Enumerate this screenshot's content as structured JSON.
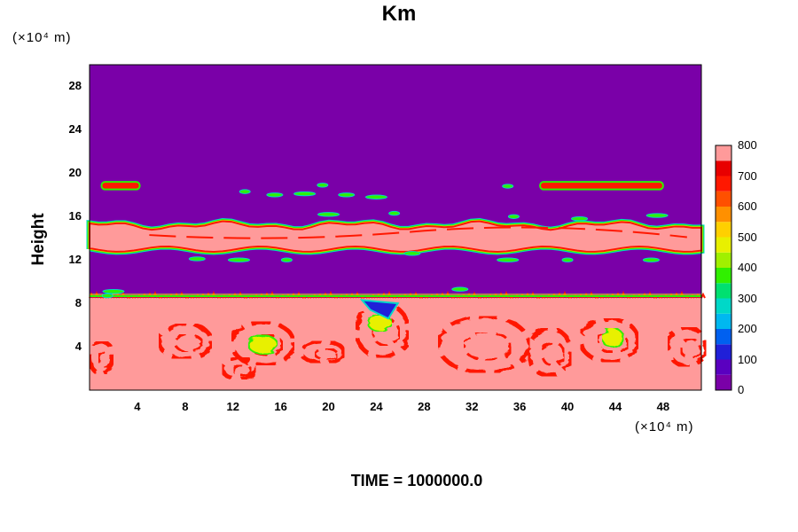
{
  "chart_data": {
    "type": "heatmap",
    "title": "Km",
    "ylabel": "Height",
    "y_unit": "(×10⁴ m)",
    "x_unit": "(×10⁴ m)",
    "x_ticks": [
      "4",
      "8",
      "12",
      "16",
      "20",
      "24",
      "28",
      "32",
      "36",
      "40",
      "44",
      "48"
    ],
    "y_ticks": [
      "4",
      "8",
      "12",
      "16",
      "20",
      "24",
      "28"
    ],
    "xlim": [
      0,
      51.2
    ],
    "ylim": [
      0,
      30
    ],
    "colorbar": {
      "ticks": [
        "0",
        "100",
        "200",
        "300",
        "400",
        "500",
        "600",
        "700",
        "800"
      ],
      "range": [
        0,
        800
      ],
      "colors": [
        "#7a00a8",
        "#5a00c0",
        "#2020d8",
        "#0060f0",
        "#00b8f0",
        "#00d8c8",
        "#00e070",
        "#30f000",
        "#a0f000",
        "#e8f000",
        "#ffd000",
        "#ff9000",
        "#ff5000",
        "#ff1800",
        "#e80000",
        "#ff9a9a"
      ]
    },
    "annotation": "TIME = 1000000.0",
    "background_value": 0,
    "layers": [
      {
        "region": "lower turbulent layer",
        "y_range": [
          0,
          8.5
        ],
        "typical_value": 800
      },
      {
        "region": "upper band",
        "y_range": [
          13,
          15.5
        ],
        "typical_value": 800
      },
      {
        "region": "thin layer",
        "y_range": [
          18.5,
          19.2
        ],
        "typical_value": 600
      }
    ]
  },
  "colors": {
    "background": "#7a00a8",
    "saturated": "#ff9a9a",
    "red": "#ff1800",
    "yellow": "#e8f000",
    "green": "#30f000",
    "cyan": "#00d8c8",
    "blue": "#2020d8"
  }
}
